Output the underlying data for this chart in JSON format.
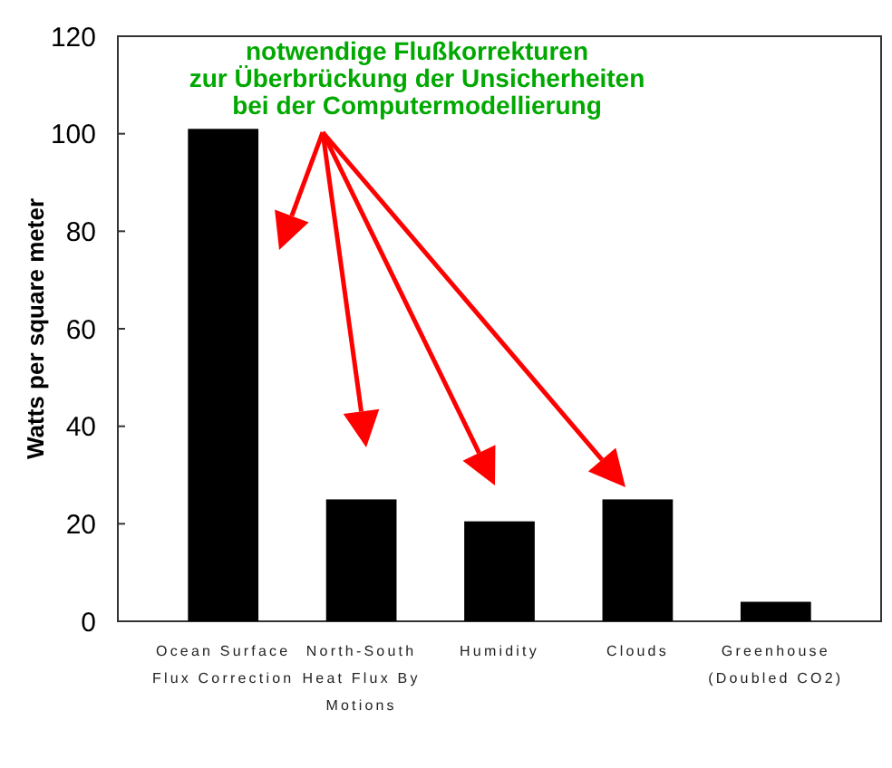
{
  "chart_data": {
    "type": "bar",
    "ylabel": "Watts per square meter",
    "categories": [
      "Ocean Surface Flux Correction",
      "North-South Heat Flux By Motions",
      "Humidity",
      "Clouds",
      "Greenhouse (Doubled CO2)"
    ],
    "values": [
      101,
      25,
      20.5,
      25,
      4
    ],
    "color": "#000000",
    "ylim": [
      0,
      120
    ],
    "yticks": [
      0,
      20,
      40,
      60,
      80,
      100,
      120
    ],
    "annotations": [
      "notwendige Flußkorrekturen\nzur Überbrückung der Unsicherheiten\nbei der Computermodellierung"
    ]
  }
}
